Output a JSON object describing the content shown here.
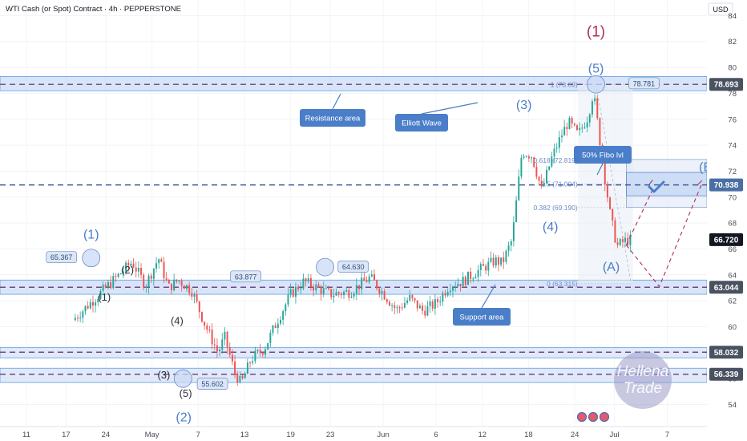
{
  "header": {
    "title": "WTI Cash (or Spot) Contract · 4h · PEPPERSTONE",
    "currency": "USD"
  },
  "chart_data": {
    "type": "candlestick",
    "y_ticks": [
      84,
      82,
      80,
      78,
      76,
      74,
      72,
      70,
      68,
      66,
      64,
      62,
      60,
      58,
      56,
      54
    ],
    "ylim": [
      52.3,
      85.2
    ],
    "x_ticks": [
      "11",
      "17",
      "24",
      "May",
      "7",
      "13",
      "19",
      "23",
      "Jun",
      "6",
      "12",
      "18",
      "24",
      "Jul",
      "7"
    ],
    "price_labels": [
      {
        "value": 78.693,
        "text": "78.693",
        "color": "#4a5262"
      },
      {
        "value": 70.938,
        "text": "70.938",
        "color": "#4a6fa5"
      },
      {
        "value": 66.72,
        "text": "66.720",
        "color": "#131722"
      },
      {
        "value": 63.044,
        "text": "63.044",
        "color": "#4a5262"
      },
      {
        "value": 58.032,
        "text": "58.032",
        "color": "#4a5262"
      },
      {
        "value": 56.339,
        "text": "56.339",
        "color": "#4a5262"
      }
    ],
    "levels": [
      {
        "value": 78.693,
        "color": "#6b5b8a"
      },
      {
        "value": 70.938,
        "color": "#3c5a9a"
      },
      {
        "value": 63.044,
        "color": "#6b4a8a"
      },
      {
        "value": 58.032,
        "color": "#6b4a8a"
      },
      {
        "value": 56.339,
        "color": "#6b4a8a"
      }
    ],
    "zones": [
      {
        "name": "resistance",
        "from": 78.2,
        "to": 79.3
      },
      {
        "name": "support",
        "from": 62.5,
        "to": 63.6
      },
      {
        "name": "low-a",
        "from": 57.6,
        "to": 58.4
      },
      {
        "name": "low-b",
        "from": 55.7,
        "to": 56.8
      }
    ],
    "candle_path": [
      [
        11,
        60.5
      ],
      [
        17,
        63.5
      ],
      [
        20,
        65.0
      ],
      [
        22,
        63.2
      ],
      [
        24,
        65.3
      ],
      [
        25.5,
        63.0
      ],
      [
        27,
        63.6
      ],
      [
        29,
        62.8
      ],
      [
        31,
        60.2
      ],
      [
        33,
        58.0
      ],
      [
        34,
        59.2
      ],
      [
        35.5,
        56.5
      ],
      [
        36.5,
        55.6
      ],
      [
        38,
        57.5
      ],
      [
        40,
        58.3
      ],
      [
        42,
        60.5
      ],
      [
        44,
        62.5
      ],
      [
        46,
        63.5
      ],
      [
        48,
        63.0
      ],
      [
        50,
        62.5
      ],
      [
        53,
        62.7
      ],
      [
        56,
        63.8
      ],
      [
        58,
        62.6
      ],
      [
        60,
        61.3
      ],
      [
        62,
        62.2
      ],
      [
        64,
        61.2
      ],
      [
        66,
        61.8
      ],
      [
        68,
        63.2
      ],
      [
        70,
        63.5
      ],
      [
        72,
        64.2
      ],
      [
        75,
        65.1
      ],
      [
        76,
        64.9
      ],
      [
        77.5,
        66.7
      ],
      [
        79,
        73.5
      ],
      [
        80.5,
        73.2
      ],
      [
        82,
        70.5
      ],
      [
        83.5,
        73.0
      ],
      [
        85,
        74.8
      ],
      [
        86,
        75.8
      ],
      [
        87.5,
        74.8
      ],
      [
        89,
        76.2
      ],
      [
        89.8,
        78.1
      ],
      [
        90.4,
        75.9
      ],
      [
        91.4,
        72.0
      ],
      [
        92.4,
        68.5
      ],
      [
        93.4,
        66.2
      ],
      [
        94.4,
        66.6
      ],
      [
        95.4,
        66.7
      ]
    ],
    "fib_levels": [
      {
        "text": "1 (78.69)",
        "value": 78.69
      },
      {
        "text": "0.618 (72.819)",
        "value": 72.819
      },
      {
        "text": "0.5 (71.004)",
        "value": 71.004
      },
      {
        "text": "0.382 (69.190)",
        "value": 69.19
      },
      {
        "text": "0 (63.315)",
        "value": 63.315
      }
    ],
    "callouts": [
      {
        "text": "65.367",
        "value": 65.367
      },
      {
        "text": "55.602",
        "value": 55.602
      },
      {
        "text": "63.877",
        "value": 63.877
      },
      {
        "text": "64.630",
        "value": 64.63
      },
      {
        "text": "78.781",
        "value": 78.781
      }
    ],
    "wave_labels": [
      {
        "text": "(1)",
        "color": "#4a7ec8"
      },
      {
        "text": "(2)",
        "color": "#2a2e39"
      },
      {
        "text": "(1)",
        "color": "#2a2e39"
      },
      {
        "text": "(4)",
        "color": "#2a2e39"
      },
      {
        "text": "(3)",
        "color": "#2a2e39"
      },
      {
        "text": "(5)",
        "color": "#2a2e39"
      },
      {
        "text": "(2)",
        "color": "#4a7ec8"
      },
      {
        "text": "(3)",
        "color": "#4a7ec8"
      },
      {
        "text": "(4)",
        "color": "#4a7ec8"
      },
      {
        "text": "(5)",
        "color": "#4a7ec8"
      },
      {
        "text": "(1)",
        "color": "#b0305a"
      },
      {
        "text": "(A)",
        "color": "#4a7ec8"
      },
      {
        "text": "(B)",
        "color": "#4a7ec8"
      }
    ],
    "annotations": {
      "resistance": "Resistance area",
      "elliott": "Elliott Wave",
      "fibo": "50% Fibo lvl",
      "support": "Support area"
    },
    "watermark": [
      "Hellena",
      "Trade"
    ]
  }
}
